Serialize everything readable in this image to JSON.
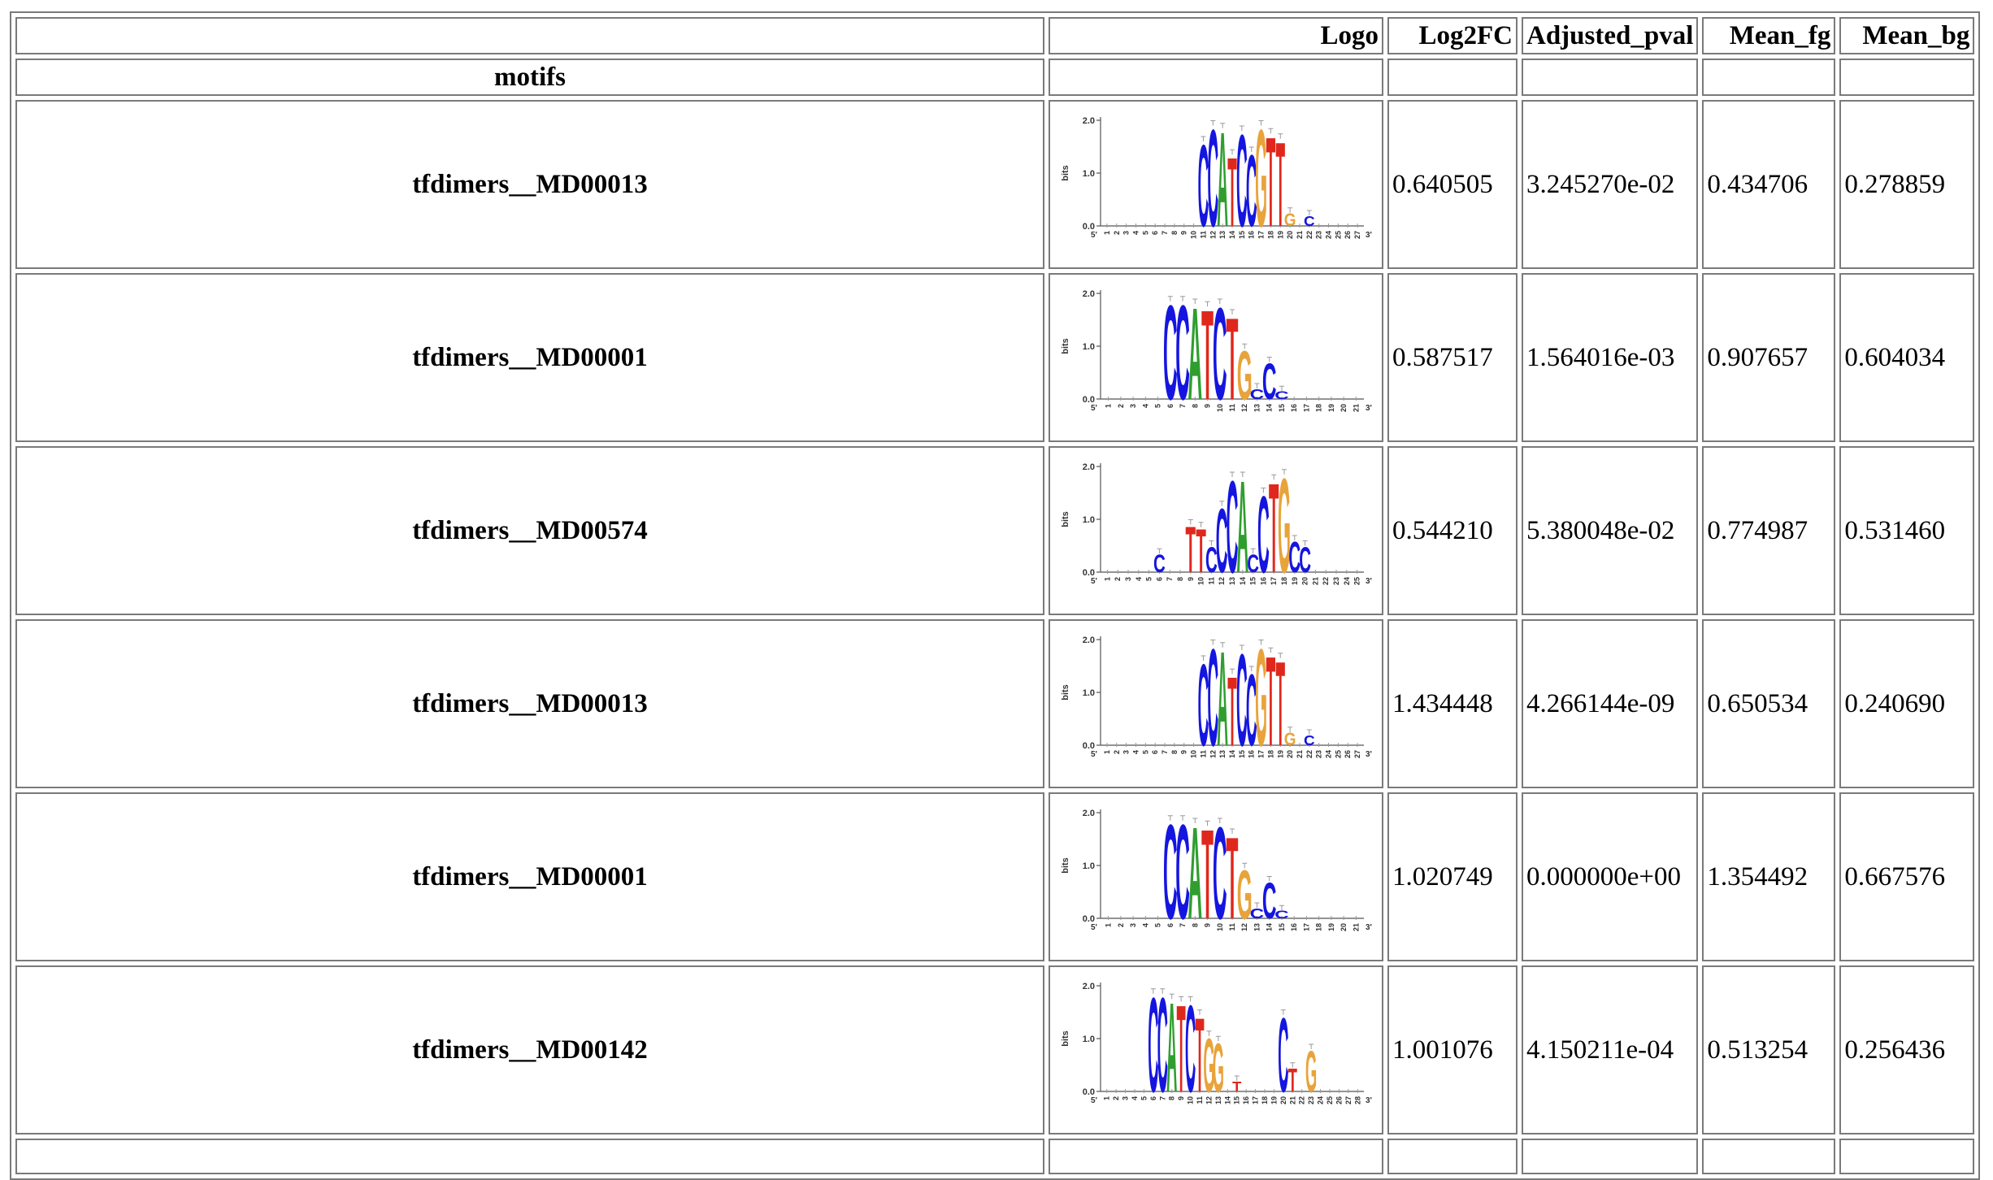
{
  "table": {
    "headers": {
      "motif": "",
      "logo": "Logo",
      "log2fc": "Log2FC",
      "adjusted_pval": "Adjusted_pval",
      "mean_fg": "Mean_fg",
      "mean_bg": "Mean_bg"
    },
    "index_label": "motifs",
    "rows": [
      {
        "motif": "tfdimers__MD00013",
        "log2fc": "0.640505",
        "adjusted_pval": "3.245270e-02",
        "mean_fg": "0.434706",
        "mean_bg": "0.278859",
        "logo": {
          "length": 27,
          "letters": [
            {
              "pos": 11,
              "base": "C",
              "h": 1.6
            },
            {
              "pos": 12,
              "base": "C",
              "h": 1.9
            },
            {
              "pos": 13,
              "base": "A",
              "h": 1.85
            },
            {
              "pos": 14,
              "base": "T",
              "h": 1.35
            },
            {
              "pos": 15,
              "base": "C",
              "h": 1.8
            },
            {
              "pos": 16,
              "base": "C",
              "h": 1.4
            },
            {
              "pos": 17,
              "base": "G",
              "h": 1.9
            },
            {
              "pos": 18,
              "base": "T",
              "h": 1.75
            },
            {
              "pos": 19,
              "base": "T",
              "h": 1.65
            },
            {
              "pos": 20,
              "base": "G",
              "h": 0.25
            },
            {
              "pos": 22,
              "base": "C",
              "h": 0.2
            }
          ]
        }
      },
      {
        "motif": "tfdimers__MD00001",
        "log2fc": "0.587517",
        "adjusted_pval": "1.564016e-03",
        "mean_fg": "0.907657",
        "mean_bg": "0.604034",
        "logo": {
          "length": 21,
          "letters": [
            {
              "pos": 6,
              "base": "C",
              "h": 1.85
            },
            {
              "pos": 7,
              "base": "C",
              "h": 1.85
            },
            {
              "pos": 8,
              "base": "A",
              "h": 1.8
            },
            {
              "pos": 9,
              "base": "T",
              "h": 1.75
            },
            {
              "pos": 10,
              "base": "C",
              "h": 1.8
            },
            {
              "pos": 11,
              "base": "T",
              "h": 1.6
            },
            {
              "pos": 12,
              "base": "G",
              "h": 0.95
            },
            {
              "pos": 13,
              "base": "C",
              "h": 0.2
            },
            {
              "pos": 14,
              "base": "C",
              "h": 0.7
            },
            {
              "pos": 15,
              "base": "C",
              "h": 0.15
            }
          ]
        }
      },
      {
        "motif": "tfdimers__MD00574",
        "log2fc": "0.544210",
        "adjusted_pval": "5.380048e-02",
        "mean_fg": "0.774987",
        "mean_bg": "0.531460",
        "logo": {
          "length": 25,
          "letters": [
            {
              "pos": 6,
              "base": "C",
              "h": 0.35
            },
            {
              "pos": 9,
              "base": "T",
              "h": 0.9
            },
            {
              "pos": 10,
              "base": "T",
              "h": 0.85
            },
            {
              "pos": 11,
              "base": "C",
              "h": 0.5
            },
            {
              "pos": 12,
              "base": "C",
              "h": 1.25
            },
            {
              "pos": 13,
              "base": "C",
              "h": 1.8
            },
            {
              "pos": 14,
              "base": "A",
              "h": 1.8
            },
            {
              "pos": 15,
              "base": "C",
              "h": 0.35
            },
            {
              "pos": 16,
              "base": "C",
              "h": 1.5
            },
            {
              "pos": 17,
              "base": "T",
              "h": 1.75
            },
            {
              "pos": 18,
              "base": "G",
              "h": 1.85
            },
            {
              "pos": 19,
              "base": "C",
              "h": 0.6
            },
            {
              "pos": 20,
              "base": "C",
              "h": 0.5
            }
          ]
        }
      },
      {
        "motif": "tfdimers__MD00013",
        "log2fc": "1.434448",
        "adjusted_pval": "4.266144e-09",
        "mean_fg": "0.650534",
        "mean_bg": "0.240690",
        "logo": {
          "length": 27,
          "letters": [
            {
              "pos": 11,
              "base": "C",
              "h": 1.6
            },
            {
              "pos": 12,
              "base": "C",
              "h": 1.9
            },
            {
              "pos": 13,
              "base": "A",
              "h": 1.85
            },
            {
              "pos": 14,
              "base": "T",
              "h": 1.35
            },
            {
              "pos": 15,
              "base": "C",
              "h": 1.8
            },
            {
              "pos": 16,
              "base": "C",
              "h": 1.4
            },
            {
              "pos": 17,
              "base": "G",
              "h": 1.9
            },
            {
              "pos": 18,
              "base": "T",
              "h": 1.75
            },
            {
              "pos": 19,
              "base": "T",
              "h": 1.65
            },
            {
              "pos": 20,
              "base": "G",
              "h": 0.25
            },
            {
              "pos": 22,
              "base": "C",
              "h": 0.2
            }
          ]
        }
      },
      {
        "motif": "tfdimers__MD00001",
        "log2fc": "1.020749",
        "adjusted_pval": "0.000000e+00",
        "mean_fg": "1.354492",
        "mean_bg": "0.667576",
        "logo": {
          "length": 21,
          "letters": [
            {
              "pos": 6,
              "base": "C",
              "h": 1.85
            },
            {
              "pos": 7,
              "base": "C",
              "h": 1.85
            },
            {
              "pos": 8,
              "base": "A",
              "h": 1.8
            },
            {
              "pos": 9,
              "base": "T",
              "h": 1.75
            },
            {
              "pos": 10,
              "base": "C",
              "h": 1.8
            },
            {
              "pos": 11,
              "base": "T",
              "h": 1.6
            },
            {
              "pos": 12,
              "base": "G",
              "h": 0.95
            },
            {
              "pos": 13,
              "base": "C",
              "h": 0.2
            },
            {
              "pos": 14,
              "base": "C",
              "h": 0.7
            },
            {
              "pos": 15,
              "base": "C",
              "h": 0.15
            }
          ]
        }
      },
      {
        "motif": "tfdimers__MD00142",
        "log2fc": "1.001076",
        "adjusted_pval": "4.150211e-04",
        "mean_fg": "0.513254",
        "mean_bg": "0.256436",
        "logo": {
          "length": 28,
          "letters": [
            {
              "pos": 6,
              "base": "C",
              "h": 1.85
            },
            {
              "pos": 7,
              "base": "C",
              "h": 1.85
            },
            {
              "pos": 8,
              "base": "A",
              "h": 1.75
            },
            {
              "pos": 9,
              "base": "T",
              "h": 1.7
            },
            {
              "pos": 10,
              "base": "C",
              "h": 1.7
            },
            {
              "pos": 11,
              "base": "T",
              "h": 1.45
            },
            {
              "pos": 12,
              "base": "G",
              "h": 1.05
            },
            {
              "pos": 13,
              "base": "G",
              "h": 0.95
            },
            {
              "pos": 15,
              "base": "T",
              "h": 0.2
            },
            {
              "pos": 20,
              "base": "C",
              "h": 1.45
            },
            {
              "pos": 21,
              "base": "T",
              "h": 0.45
            },
            {
              "pos": 23,
              "base": "G",
              "h": 0.8
            }
          ]
        }
      }
    ]
  },
  "logo_axis": {
    "ylabel": "bits",
    "ticks": [
      "0.0",
      "1.0",
      "2.0"
    ],
    "left_end": "5'",
    "right_end": "3'",
    "ymax": 2.0
  },
  "colors": {
    "A": "#2f9e2f",
    "C": "#1515e0",
    "G": "#e8a33a",
    "T": "#e0271c",
    "border": "#7a7a7a"
  }
}
